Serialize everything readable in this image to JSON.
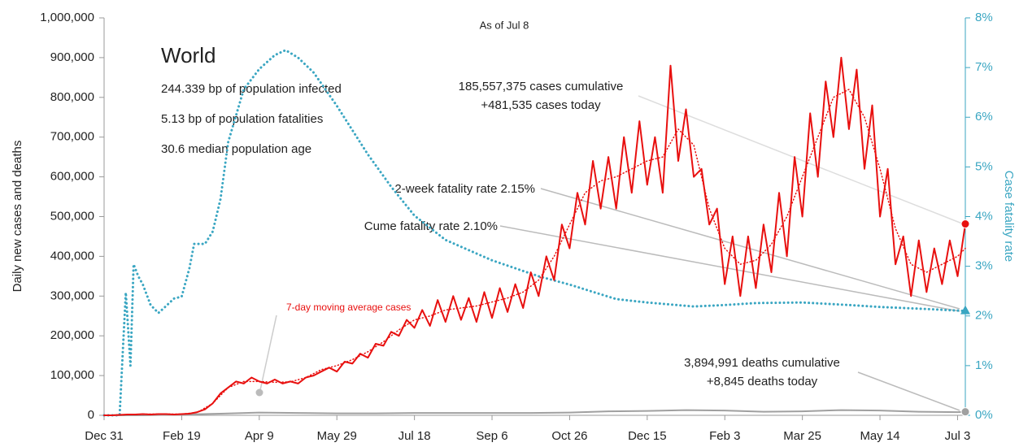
{
  "chart_data": {
    "type": "line",
    "subtitle": "As of Jul 8",
    "ylabel": "Daily new cases and deaths",
    "y2label": "Case fatality rate",
    "annotations": {
      "region": "World",
      "infected": "244.339 bp of population infected",
      "fatalities": "5.13 bp of population fatalities",
      "age": "30.6 median population age",
      "cases_cum": "185,557,375 cases cumulative",
      "cases_today": "+481,535 cases today",
      "two_week": "2-week fatality rate 2.15%",
      "cume": "Cume fatality rate 2.10%",
      "deaths_cum": "3,894,991 deaths cumulative",
      "deaths_today": "+8,845 deaths today",
      "moving_avg": "7-day moving average cases"
    },
    "xlim": [
      0,
      555
    ],
    "xticks": [
      {
        "value": 0,
        "label": "Dec 31"
      },
      {
        "value": 50,
        "label": "Feb 19"
      },
      {
        "value": 100,
        "label": "Apr 9"
      },
      {
        "value": 150,
        "label": "May 29"
      },
      {
        "value": 200,
        "label": "Jul 18"
      },
      {
        "value": 250,
        "label": "Sep 6"
      },
      {
        "value": 300,
        "label": "Oct 26"
      },
      {
        "value": 350,
        "label": "Dec 15"
      },
      {
        "value": 400,
        "label": "Feb 3"
      },
      {
        "value": 450,
        "label": "Mar 25"
      },
      {
        "value": 500,
        "label": "May 14"
      },
      {
        "value": 550,
        "label": "Jul 3"
      }
    ],
    "ylim": [
      0,
      1000000
    ],
    "yticks": [
      {
        "value": 0,
        "label": "0"
      },
      {
        "value": 100000,
        "label": "100,000"
      },
      {
        "value": 200000,
        "label": "200,000"
      },
      {
        "value": 300000,
        "label": "300,000"
      },
      {
        "value": 400000,
        "label": "400,000"
      },
      {
        "value": 500000,
        "label": "500,000"
      },
      {
        "value": 600000,
        "label": "600,000"
      },
      {
        "value": 700000,
        "label": "700,000"
      },
      {
        "value": 800000,
        "label": "800,000"
      },
      {
        "value": 900000,
        "label": "900,000"
      },
      {
        "value": 1000000,
        "label": "1,000,000"
      }
    ],
    "y2lim": [
      0,
      8
    ],
    "y2ticks": [
      {
        "value": 0,
        "label": "0%"
      },
      {
        "value": 1,
        "label": "1%"
      },
      {
        "value": 2,
        "label": "2%"
      },
      {
        "value": 3,
        "label": "3%"
      },
      {
        "value": 4,
        "label": "4%"
      },
      {
        "value": 5,
        "label": "5%"
      },
      {
        "value": 6,
        "label": "6%"
      },
      {
        "value": 7,
        "label": "7%"
      },
      {
        "value": 8,
        "label": "8%"
      }
    ],
    "series": [
      {
        "color": "#e8100f",
        "style": "solid",
        "x": [
          0,
          5,
          10,
          15,
          20,
          25,
          30,
          35,
          40,
          45,
          50,
          55,
          60,
          65,
          70,
          75,
          80,
          85,
          90,
          95,
          100,
          105,
          110,
          115,
          120,
          125,
          130,
          135,
          140,
          145,
          150,
          155,
          160,
          165,
          170,
          175,
          180,
          185,
          190,
          195,
          200,
          205,
          210,
          215,
          220,
          225,
          230,
          235,
          240,
          245,
          250,
          255,
          260,
          265,
          270,
          275,
          280,
          285,
          290,
          295,
          300,
          305,
          310,
          315,
          320,
          325,
          330,
          335,
          340,
          345,
          350,
          355,
          360,
          365,
          370,
          375,
          380,
          385,
          390,
          395,
          400,
          405,
          410,
          415,
          420,
          425,
          430,
          435,
          440,
          445,
          450,
          455,
          460,
          465,
          470,
          475,
          480,
          485,
          490,
          495,
          500,
          505,
          510,
          515,
          520,
          525,
          530,
          535,
          540,
          545,
          550,
          555
        ],
        "values": [
          0,
          0,
          1000,
          2000,
          2000,
          3000,
          2000,
          3000,
          3000,
          2000,
          3000,
          4000,
          8000,
          15000,
          30000,
          55000,
          70000,
          85000,
          80000,
          95000,
          85000,
          80000,
          90000,
          80000,
          85000,
          80000,
          95000,
          100000,
          110000,
          120000,
          110000,
          135000,
          130000,
          155000,
          145000,
          180000,
          175000,
          210000,
          200000,
          240000,
          220000,
          265000,
          225000,
          290000,
          235000,
          300000,
          240000,
          295000,
          235000,
          310000,
          245000,
          320000,
          260000,
          330000,
          270000,
          360000,
          300000,
          400000,
          340000,
          480000,
          420000,
          560000,
          480000,
          640000,
          520000,
          650000,
          520000,
          700000,
          560000,
          740000,
          580000,
          700000,
          560000,
          880000,
          640000,
          770000,
          600000,
          620000,
          480000,
          520000,
          330000,
          450000,
          300000,
          450000,
          320000,
          480000,
          360000,
          560000,
          400000,
          650000,
          500000,
          760000,
          600000,
          840000,
          700000,
          900000,
          720000,
          870000,
          620000,
          780000,
          500000,
          620000,
          380000,
          450000,
          300000,
          440000,
          310000,
          420000,
          330000,
          440000,
          350000,
          481535
        ]
      },
      {
        "color": "#e8100f",
        "style": "dotted",
        "x": [
          0,
          10,
          20,
          30,
          40,
          50,
          60,
          70,
          80,
          90,
          100,
          110,
          120,
          130,
          140,
          150,
          160,
          170,
          180,
          190,
          200,
          210,
          220,
          230,
          240,
          250,
          260,
          270,
          280,
          290,
          300,
          310,
          320,
          330,
          340,
          350,
          360,
          370,
          380,
          390,
          400,
          410,
          420,
          430,
          440,
          450,
          460,
          470,
          480,
          490,
          500,
          510,
          520,
          530,
          540,
          550,
          555
        ],
        "values": [
          0,
          1000,
          2000,
          3000,
          3000,
          3000,
          7000,
          30000,
          70000,
          85000,
          85000,
          83000,
          84000,
          95000,
          115000,
          125000,
          140000,
          160000,
          185000,
          215000,
          240000,
          250000,
          265000,
          270000,
          275000,
          285000,
          295000,
          310000,
          340000,
          400000,
          480000,
          560000,
          590000,
          600000,
          620000,
          640000,
          650000,
          720000,
          680000,
          520000,
          420000,
          380000,
          390000,
          430000,
          500000,
          600000,
          700000,
          800000,
          820000,
          750000,
          620000,
          470000,
          380000,
          360000,
          380000,
          400000,
          420000
        ]
      },
      {
        "color": "#a0a0a0",
        "style": "solid",
        "x": [
          0,
          25,
          50,
          75,
          100,
          125,
          150,
          175,
          200,
          225,
          250,
          275,
          300,
          325,
          350,
          375,
          400,
          425,
          450,
          475,
          500,
          525,
          550,
          555
        ],
        "values": [
          0,
          100,
          2000,
          4000,
          7000,
          6000,
          5000,
          5000,
          6000,
          6000,
          6000,
          6000,
          7000,
          10000,
          11000,
          13000,
          12000,
          9000,
          10000,
          13000,
          12000,
          9000,
          8000,
          8845
        ]
      },
      {
        "color": "#3aa6c2",
        "style": "dotted",
        "axis": "y2",
        "x": [
          0,
          10,
          12,
          14,
          16,
          17,
          19,
          22,
          25,
          30,
          35,
          40,
          45,
          50,
          55,
          58,
          65,
          70,
          75,
          80,
          90,
          100,
          110,
          117,
          125,
          135,
          150,
          170,
          185,
          200,
          220,
          250,
          280,
          300,
          330,
          350,
          380,
          400,
          420,
          450,
          480,
          500,
          530,
          555
        ],
        "values": [
          0,
          0,
          1.25,
          2.47,
          1.5,
          1.0,
          3.04,
          2.8,
          2.63,
          2.22,
          2.06,
          2.2,
          2.35,
          2.39,
          2.96,
          3.45,
          3.45,
          3.7,
          4.35,
          5.5,
          6.56,
          6.97,
          7.25,
          7.35,
          7.2,
          6.9,
          6.23,
          5.25,
          4.6,
          4.02,
          3.53,
          3.12,
          2.8,
          2.63,
          2.34,
          2.27,
          2.19,
          2.22,
          2.26,
          2.27,
          2.22,
          2.18,
          2.14,
          2.1
        ]
      }
    ]
  }
}
